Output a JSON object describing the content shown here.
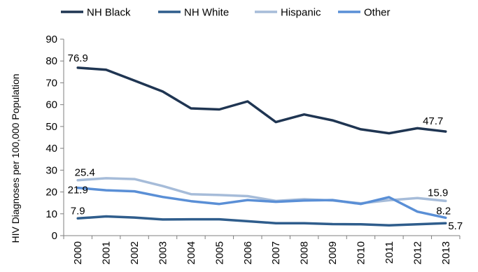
{
  "chart_data": {
    "type": "line",
    "title": "",
    "xlabel": "",
    "ylabel": "HIV Diagnoses per 100,000 Population",
    "ylim": [
      0,
      90
    ],
    "yticks": [
      0,
      10,
      20,
      30,
      40,
      50,
      60,
      70,
      80,
      90
    ],
    "grid": false,
    "legend_position": "top",
    "x": [
      "2000",
      "2001",
      "2002",
      "2003",
      "2004",
      "2005",
      "2006",
      "2007",
      "2008",
      "2009",
      "2010",
      "2011",
      "2012",
      "2013"
    ],
    "series": [
      {
        "name": "NH Black",
        "color": "#1f3552",
        "values": [
          76.9,
          76.0,
          71.0,
          66.0,
          58.3,
          57.8,
          61.5,
          52.0,
          55.5,
          52.8,
          48.7,
          46.9,
          49.2,
          47.7
        ]
      },
      {
        "name": "NH White",
        "color": "#2f5d8c",
        "values": [
          7.9,
          8.8,
          8.3,
          7.4,
          7.5,
          7.5,
          6.6,
          5.7,
          5.7,
          5.3,
          5.2,
          4.7,
          5.2,
          5.7
        ]
      },
      {
        "name": "Hispanic",
        "color": "#a6bcd9",
        "values": [
          25.4,
          26.3,
          25.9,
          22.7,
          19.0,
          18.6,
          18.1,
          15.9,
          16.7,
          16.1,
          14.8,
          16.2,
          17.2,
          15.9
        ]
      },
      {
        "name": "Other",
        "color": "#5a8fd6",
        "values": [
          21.9,
          20.8,
          20.3,
          17.7,
          15.8,
          14.5,
          16.3,
          15.5,
          16.1,
          16.3,
          14.5,
          17.6,
          11.0,
          8.2
        ]
      }
    ],
    "annotations": [
      {
        "series": "NH Black",
        "x": "2000",
        "text": "76.9"
      },
      {
        "series": "NH Black",
        "x": "2013",
        "text": "47.7"
      },
      {
        "series": "Hispanic",
        "x": "2000",
        "text": "25.4"
      },
      {
        "series": "Hispanic",
        "x": "2013",
        "text": "15.9"
      },
      {
        "series": "Other",
        "x": "2000",
        "text": "21.9"
      },
      {
        "series": "Other",
        "x": "2013",
        "text": "8.2"
      },
      {
        "series": "NH White",
        "x": "2000",
        "text": "7.9"
      },
      {
        "series": "NH White",
        "x": "2013",
        "text": "5.7"
      }
    ]
  }
}
